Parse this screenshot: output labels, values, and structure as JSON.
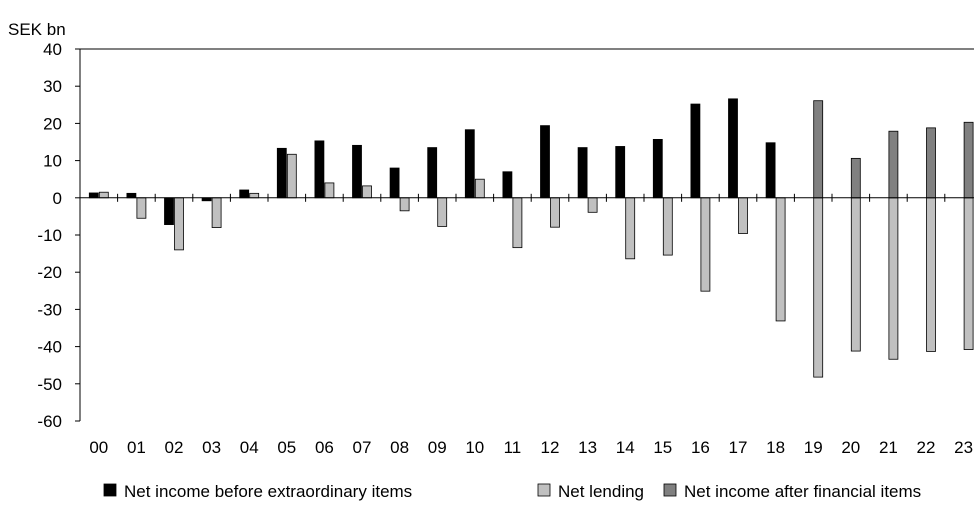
{
  "chart_data": {
    "type": "bar",
    "unit_label": "SEK bn",
    "categories": [
      "00",
      "01",
      "02",
      "03",
      "04",
      "05",
      "06",
      "07",
      "08",
      "09",
      "10",
      "11",
      "12",
      "13",
      "14",
      "15",
      "16",
      "17",
      "18",
      "19",
      "20",
      "21",
      "22",
      "23"
    ],
    "series": [
      {
        "name": "Net income before extraordinary items",
        "color": "#000000",
        "values": [
          1.3,
          1.2,
          -7.2,
          -0.8,
          2.1,
          13.3,
          15.3,
          14.1,
          8.0,
          13.5,
          18.3,
          7.0,
          19.4,
          13.5,
          13.8,
          15.7,
          25.2,
          26.6,
          14.8,
          null,
          null,
          null,
          null,
          null
        ]
      },
      {
        "name": "Net lending",
        "color": "#c0c0c0",
        "values": [
          1.5,
          -5.5,
          -14.0,
          -8.0,
          1.2,
          11.7,
          4.0,
          3.2,
          -3.5,
          -7.7,
          5.0,
          -13.4,
          -7.9,
          -3.9,
          -16.4,
          -15.4,
          -25.1,
          -9.6,
          -33.1,
          -48.2,
          -41.2,
          -43.4,
          -41.3,
          -40.8
        ]
      },
      {
        "name": "Net income after financial items",
        "color": "#808080",
        "values": [
          null,
          null,
          null,
          null,
          null,
          null,
          null,
          null,
          null,
          null,
          null,
          null,
          null,
          null,
          null,
          null,
          null,
          null,
          null,
          26.1,
          10.6,
          17.9,
          18.8,
          20.3
        ]
      }
    ],
    "ylim": [
      -60,
      40
    ],
    "yticks": [
      40,
      30,
      20,
      10,
      0,
      -10,
      -20,
      -30,
      -40,
      -50,
      -60
    ],
    "grid": false,
    "legend_position": "bottom"
  }
}
